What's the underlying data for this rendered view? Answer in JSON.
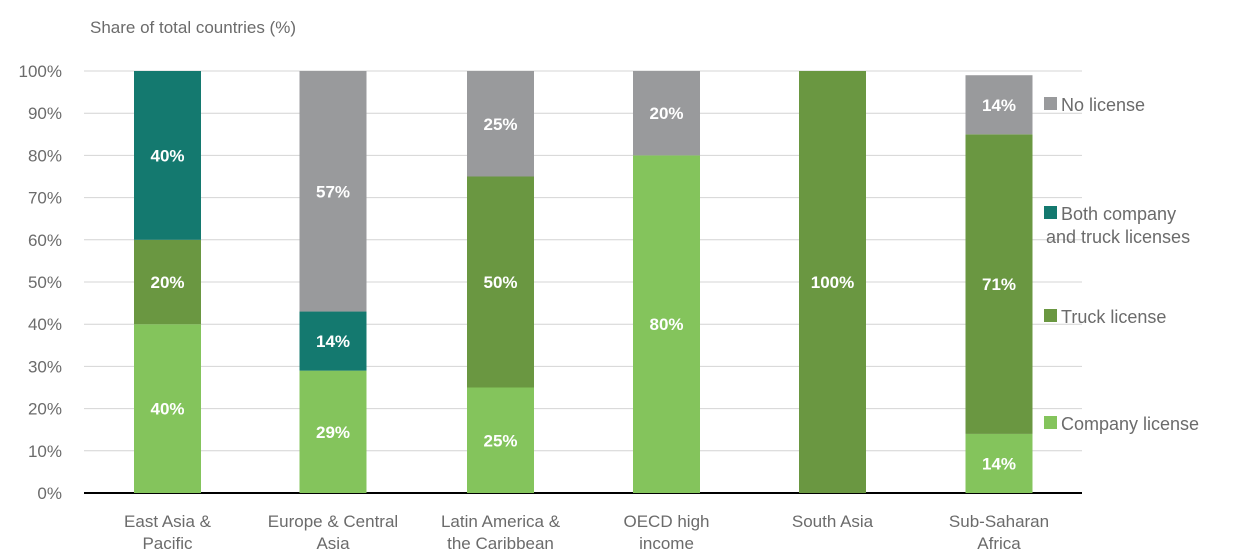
{
  "chart_data": {
    "type": "bar",
    "stacked": true,
    "ylabel": "Share of total countries (%)",
    "ylim": [
      0,
      100
    ],
    "y_ticks": [
      "0%",
      "10%",
      "20%",
      "30%",
      "40%",
      "50%",
      "60%",
      "70%",
      "80%",
      "90%",
      "100%"
    ],
    "grid": true,
    "legend_placement": "right",
    "categories": [
      [
        "East Asia &",
        "Pacific"
      ],
      [
        "Europe & Central",
        "Asia"
      ],
      [
        "Latin America &",
        "the Caribbean"
      ],
      [
        "OECD high",
        "income"
      ],
      [
        "South Asia"
      ],
      [
        "Sub-Saharan",
        "Africa"
      ]
    ],
    "series": [
      {
        "name": "Company license",
        "color": "#84c45c",
        "values": [
          40,
          29,
          25,
          80,
          0,
          14
        ],
        "labels": [
          "40%",
          "29%",
          "25%",
          "80%",
          "",
          "14%"
        ]
      },
      {
        "name": "Truck license",
        "color": "#6a9741",
        "values": [
          20,
          0,
          50,
          0,
          100,
          71
        ],
        "labels": [
          "20%",
          "",
          "50%",
          "",
          "100%",
          "71%"
        ]
      },
      {
        "name": "Both company and truck licenses",
        "legend_lines": [
          "Both company",
          "and truck licenses"
        ],
        "color": "#14796f",
        "values": [
          40,
          14,
          0,
          0,
          0,
          0
        ],
        "labels": [
          "40%",
          "14%",
          "",
          "",
          "",
          ""
        ]
      },
      {
        "name": "No license",
        "color": "#999a9c",
        "values": [
          0,
          57,
          25,
          20,
          0,
          14
        ],
        "labels": [
          "",
          "57%",
          "25%",
          "20%",
          "",
          "14%"
        ]
      }
    ],
    "legend_order": [
      3,
      2,
      1,
      0
    ]
  }
}
